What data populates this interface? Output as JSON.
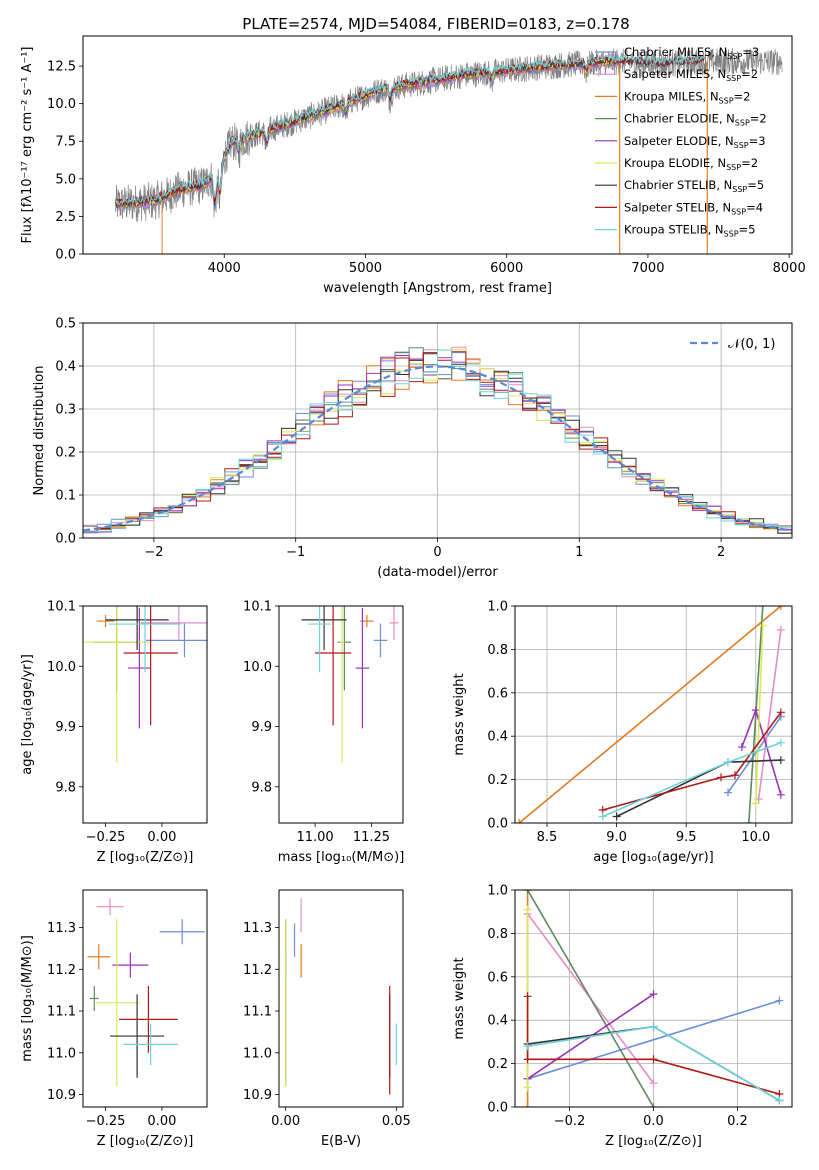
{
  "figure_title": "PLATE=2574, MJD=54084, FIBERID=0183, z=0.178",
  "colors": {
    "Chabrier MILES": "#6a8ed8",
    "Salpeter MILES": "#e58cc6",
    "Kroupa MILES": "#e07b1f",
    "Chabrier ELODIE": "#5e8a5e",
    "Salpeter ELODIE": "#9932b8",
    "Kroupa ELODIE": "#d7ea55",
    "Chabrier STELIB": "#333333",
    "Salpeter STELIB": "#b01818",
    "Kroupa STELIB": "#6fd3dc",
    "observed": "#808080",
    "normal": "#5a87d8"
  },
  "chart_data": [
    {
      "id": "spectrum",
      "type": "line",
      "title": "PLATE=2574, MJD=54084, FIBERID=0183, z=0.178",
      "xlabel": "wavelength [Angstrom, rest frame]",
      "ylabel": "Flux [fλ10⁻¹⁷ erg cm⁻² s⁻¹ A⁻¹]",
      "xlim": [
        3000,
        8020
      ],
      "ylim": [
        0,
        14.5
      ],
      "xticks": [
        "4000",
        "5000",
        "6000",
        "7000",
        "8000"
      ],
      "yticks": [
        "0.0",
        "2.5",
        "5.0",
        "7.5",
        "10.0",
        "12.5"
      ],
      "legend_position": "top-right",
      "series": [
        {
          "name": "Chabrier MILES, N_SSP=3",
          "range": [
            3230,
            6800
          ]
        },
        {
          "name": "Salpeter MILES, N_SSP=2",
          "range": [
            3230,
            6800
          ]
        },
        {
          "name": "Kroupa MILES, N_SSP=2",
          "range": [
            3230,
            6800
          ]
        },
        {
          "name": "Chabrier ELODIE, N_SSP=2",
          "range": [
            3230,
            6800
          ]
        },
        {
          "name": "Salpeter ELODIE, N_SSP=3",
          "range": [
            3230,
            6800
          ]
        },
        {
          "name": "Kroupa ELODIE, N_SSP=2",
          "range": [
            3230,
            6800
          ]
        },
        {
          "name": "Chabrier STELIB, N_SSP=5",
          "range": [
            3230,
            7400
          ]
        },
        {
          "name": "Salpeter STELIB, N_SSP=4",
          "range": [
            3230,
            7400
          ]
        },
        {
          "name": "Kroupa STELIB, N_SSP=5",
          "range": [
            3230,
            7400
          ]
        }
      ],
      "continuum_points": [
        [
          3230,
          3.3
        ],
        [
          3500,
          3.5
        ],
        [
          3700,
          4.3
        ],
        [
          3850,
          4.6
        ],
        [
          3950,
          5.4
        ],
        [
          4050,
          7.4
        ],
        [
          4300,
          8.2
        ],
        [
          4500,
          8.8
        ],
        [
          4800,
          9.8
        ],
        [
          5100,
          10.9
        ],
        [
          5400,
          11.4
        ],
        [
          5700,
          11.9
        ],
        [
          6000,
          12.2
        ],
        [
          6300,
          12.5
        ],
        [
          6600,
          12.7
        ],
        [
          6800,
          12.8
        ],
        [
          7100,
          12.6
        ],
        [
          7400,
          12.8
        ]
      ]
    },
    {
      "id": "residuals",
      "type": "line",
      "xlabel": "(data-model)/error",
      "ylabel": "Normed distribution",
      "xlim": [
        -2.5,
        2.5
      ],
      "ylim": [
        0,
        0.5
      ],
      "xticks": [
        "−2",
        "−1",
        "0",
        "1",
        "2"
      ],
      "yticks": [
        "0.0",
        "0.1",
        "0.2",
        "0.3",
        "0.4",
        "0.5"
      ],
      "grid": true,
      "legend": "𝒩(0, 1)",
      "legend_position": "top-right",
      "bin_width": 0.1,
      "curve": "standard normal density"
    },
    {
      "id": "age_vs_Z",
      "type": "scatter",
      "xlabel": "Z [log₁₀(Z/Z⊙)]",
      "ylabel": "age  [log₁₀(age/yr)]",
      "xlim": [
        -0.35,
        0.2
      ],
      "ylim": [
        9.74,
        10.1
      ],
      "xticks": [
        "−0.25",
        "0.00"
      ],
      "yticks": [
        "9.8",
        "9.9",
        "10.0",
        "10.1"
      ],
      "points": [
        {
          "series": "Chabrier MILES",
          "x": 0.1,
          "xerr": 0.17,
          "y": 10.043,
          "yerr": 0.028
        },
        {
          "series": "Salpeter MILES",
          "x": 0.075,
          "xerr": 0.17,
          "y": 10.072,
          "yerr": 0.028
        },
        {
          "series": "Kroupa MILES",
          "x": -0.25,
          "xerr": 0.04,
          "y": 10.075,
          "yerr": 0.01
        },
        {
          "series": "Chabrier ELODIE",
          "x": -0.2,
          "xerr": 0.1,
          "y": 10.04,
          "yerr": 0.08
        },
        {
          "series": "Salpeter ELODIE",
          "x": -0.1,
          "xerr": 0.05,
          "y": 9.997,
          "yerr": 0.1
        },
        {
          "series": "Kroupa ELODIE",
          "x": -0.2,
          "xerr": 0.15,
          "y": 10.04,
          "yerr": 0.2
        },
        {
          "series": "Chabrier STELIB",
          "x": -0.11,
          "xerr": 0.14,
          "y": 10.077,
          "yerr": 0.05
        },
        {
          "series": "Salpeter STELIB",
          "x": -0.05,
          "xerr": 0.12,
          "y": 10.022,
          "yerr": 0.12
        },
        {
          "series": "Kroupa STELIB",
          "x": -0.075,
          "xerr": 0.16,
          "y": 10.07,
          "yerr": 0.08
        }
      ]
    },
    {
      "id": "age_vs_mass",
      "type": "scatter",
      "xlabel": "mass [log₁₀(M/M⊙)]",
      "xlim": [
        10.84,
        11.39
      ],
      "ylim": [
        9.74,
        10.1
      ],
      "xticks": [
        "11.00",
        "11.25"
      ],
      "yticks": [
        "9.8",
        "9.9",
        "10.0",
        "10.1"
      ],
      "points": [
        {
          "series": "Chabrier MILES",
          "x": 11.29,
          "xerr": 0.03,
          "y": 10.043,
          "yerr": 0.028
        },
        {
          "series": "Salpeter MILES",
          "x": 11.35,
          "xerr": 0.02,
          "y": 10.072,
          "yerr": 0.028
        },
        {
          "series": "Kroupa MILES",
          "x": 11.23,
          "xerr": 0.03,
          "y": 10.075,
          "yerr": 0.01
        },
        {
          "series": "Chabrier ELODIE",
          "x": 11.13,
          "xerr": 0.03,
          "y": 10.04,
          "yerr": 0.08
        },
        {
          "series": "Salpeter ELODIE",
          "x": 11.21,
          "xerr": 0.03,
          "y": 9.997,
          "yerr": 0.1
        },
        {
          "series": "Kroupa ELODIE",
          "x": 11.12,
          "xerr": 0.01,
          "y": 10.04,
          "yerr": 0.2
        },
        {
          "series": "Chabrier STELIB",
          "x": 11.04,
          "xerr": 0.1,
          "y": 10.077,
          "yerr": 0.05
        },
        {
          "series": "Salpeter STELIB",
          "x": 11.08,
          "xerr": 0.08,
          "y": 10.022,
          "yerr": 0.12
        },
        {
          "series": "Kroupa STELIB",
          "x": 11.02,
          "xerr": 0.05,
          "y": 10.07,
          "yerr": 0.08
        }
      ]
    },
    {
      "id": "mass_weight_vs_age",
      "type": "line",
      "xlabel": "age  [log₁₀(age/yr)]",
      "ylabel": "mass weight",
      "xlim": [
        8.27,
        10.26
      ],
      "ylim": [
        0,
        1.0
      ],
      "xticks": [
        "8.5",
        "9.0",
        "9.5",
        "10.0"
      ],
      "yticks": [
        "0.0",
        "0.2",
        "0.4",
        "0.6",
        "0.8",
        "1.0"
      ],
      "grid": true,
      "series": [
        {
          "name": "Chabrier MILES",
          "x": [
            9.8,
            10.18
          ],
          "y": [
            0.14,
            0.49
          ]
        },
        {
          "name": "Salpeter MILES",
          "x": [
            10.02,
            10.18
          ],
          "y": [
            0.11,
            0.89
          ]
        },
        {
          "name": "Kroupa MILES",
          "x": [
            8.3,
            10.18
          ],
          "y": [
            0.0,
            1.0
          ]
        },
        {
          "name": "Chabrier ELODIE",
          "x": [
            9.95,
            10.05
          ],
          "y": [
            0.0,
            1.0
          ]
        },
        {
          "name": "Salpeter ELODIE",
          "x": [
            9.9,
            10.0,
            10.18
          ],
          "y": [
            0.35,
            0.52,
            0.13
          ]
        },
        {
          "name": "Kroupa ELODIE",
          "x": [
            10.0,
            10.05
          ],
          "y": [
            0.09,
            0.91
          ]
        },
        {
          "name": "Chabrier STELIB",
          "x": [
            9.0,
            9.8,
            10.18
          ],
          "y": [
            0.03,
            0.28,
            0.29
          ]
        },
        {
          "name": "Salpeter STELIB",
          "x": [
            8.9,
            9.75,
            9.85,
            10.18
          ],
          "y": [
            0.06,
            0.21,
            0.22,
            0.51
          ]
        },
        {
          "name": "Kroupa STELIB",
          "x": [
            8.9,
            9.8,
            10.18
          ],
          "y": [
            0.03,
            0.28,
            0.37
          ]
        }
      ]
    },
    {
      "id": "mass_vs_Z",
      "type": "scatter",
      "xlabel": "Z [log₁₀(Z/Z⊙)]",
      "ylabel": "mass [log₁₀(M/M⊙)]",
      "xlim": [
        -0.35,
        0.2
      ],
      "ylim": [
        10.87,
        11.39
      ],
      "xticks": [
        "−0.25",
        "0.00"
      ],
      "yticks": [
        "10.9",
        "11.0",
        "11.1",
        "11.2",
        "11.3"
      ],
      "points": [
        {
          "series": "Chabrier MILES",
          "x": 0.09,
          "xerr": 0.1,
          "y": 11.29,
          "yerr": 0.03
        },
        {
          "series": "Salpeter MILES",
          "x": -0.23,
          "xerr": 0.06,
          "y": 11.35,
          "yerr": 0.02
        },
        {
          "series": "Kroupa MILES",
          "x": -0.28,
          "xerr": 0.05,
          "y": 11.23,
          "yerr": 0.03
        },
        {
          "series": "Chabrier ELODIE",
          "x": -0.3,
          "xerr": 0.02,
          "y": 11.13,
          "yerr": 0.03
        },
        {
          "series": "Salpeter ELODIE",
          "x": -0.14,
          "xerr": 0.08,
          "y": 11.21,
          "yerr": 0.03
        },
        {
          "series": "Kroupa ELODIE",
          "x": -0.2,
          "xerr": 0.1,
          "y": 11.12,
          "yerr": 0.2
        },
        {
          "series": "Chabrier STELIB",
          "x": -0.11,
          "xerr": 0.12,
          "y": 11.04,
          "yerr": 0.1
        },
        {
          "series": "Salpeter STELIB",
          "x": -0.06,
          "xerr": 0.13,
          "y": 11.08,
          "yerr": 0.08
        },
        {
          "series": "Kroupa STELIB",
          "x": -0.05,
          "xerr": 0.12,
          "y": 11.02,
          "yerr": 0.05
        }
      ]
    },
    {
      "id": "mass_vs_ebv",
      "type": "scatter",
      "xlabel": "E(B-V)",
      "xlim": [
        -0.003,
        0.053
      ],
      "ylim": [
        10.87,
        11.39
      ],
      "xticks": [
        "0.00",
        "0.05"
      ],
      "yticks": [
        "10.9",
        "11.0",
        "11.1",
        "11.2",
        "11.3"
      ],
      "points": [
        {
          "series": "Chabrier MILES",
          "x": 0.004,
          "y": 11.27,
          "yerr": 0.04
        },
        {
          "series": "Salpeter MILES",
          "x": 0.007,
          "y": 11.33,
          "yerr": 0.04
        },
        {
          "series": "Kroupa MILES",
          "x": 0.007,
          "y": 11.22,
          "yerr": 0.04
        },
        {
          "series": "Chabrier ELODIE",
          "x": 0.0,
          "y": 11.12,
          "yerr": 0.2
        },
        {
          "series": "Salpeter ELODIE",
          "x": 0.0,
          "y": 11.21,
          "yerr": 0.03
        },
        {
          "series": "Kroupa ELODIE",
          "x": 0.0,
          "y": 11.12,
          "yerr": 0.2
        },
        {
          "series": "Chabrier STELIB",
          "x": 0.047,
          "y": 11.04,
          "yerr": 0.1
        },
        {
          "series": "Salpeter STELIB",
          "x": 0.047,
          "y": 11.03,
          "yerr": 0.13
        },
        {
          "series": "Kroupa STELIB",
          "x": 0.05,
          "y": 11.02,
          "yerr": 0.05
        }
      ]
    },
    {
      "id": "mass_weight_vs_Z",
      "type": "line",
      "xlabel": "Z [log₁₀(Z/Z⊙)]",
      "ylabel": "mass weight",
      "xlim": [
        -0.33,
        0.33
      ],
      "ylim": [
        0,
        1.0
      ],
      "xticks": [
        "−0.2",
        "0.0",
        "0.2"
      ],
      "yticks": [
        "0.0",
        "0.2",
        "0.4",
        "0.6",
        "0.8",
        "1.0"
      ],
      "grid": true,
      "series": [
        {
          "name": "Chabrier MILES",
          "x": [
            -0.3,
            0.3
          ],
          "y": [
            0.13,
            0.49
          ]
        },
        {
          "name": "Salpeter MILES",
          "x": [
            -0.3,
            0.0
          ],
          "y": [
            0.89,
            0.11
          ]
        },
        {
          "name": "Kroupa MILES",
          "x": [
            -0.3,
            -0.3
          ],
          "y": [
            0.0,
            1.0
          ]
        },
        {
          "name": "Chabrier ELODIE",
          "x": [
            -0.3,
            0.0
          ],
          "y": [
            1.0,
            0.0
          ]
        },
        {
          "name": "Salpeter ELODIE",
          "x": [
            -0.3,
            0.0
          ],
          "y": [
            0.13,
            0.52
          ]
        },
        {
          "name": "Kroupa ELODIE",
          "x": [
            -0.3,
            -0.3
          ],
          "y": [
            0.09,
            0.91
          ]
        },
        {
          "name": "Chabrier STELIB",
          "x": [
            -0.3,
            0.0,
            0.3
          ],
          "y": [
            0.29,
            0.37,
            0.03
          ]
        },
        {
          "name": "Salpeter STELIB",
          "x": [
            -0.3,
            -0.3,
            0.0,
            0.3
          ],
          "y": [
            0.51,
            0.22,
            0.22,
            0.06
          ]
        },
        {
          "name": "Kroupa STELIB",
          "x": [
            -0.3,
            0.0,
            0.3
          ],
          "y": [
            0.28,
            0.37,
            0.03
          ]
        }
      ]
    }
  ]
}
